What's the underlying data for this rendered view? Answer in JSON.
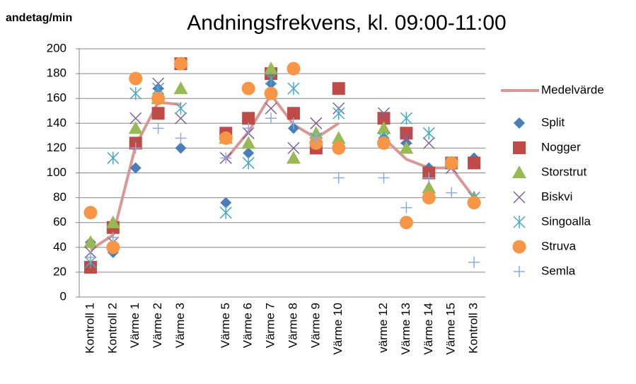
{
  "chart_data": {
    "type": "scatter",
    "title": "Andningsfrekvens, kl. 09:00-11:00",
    "y_label": "andetag/min",
    "categories": [
      "Kontroll 1",
      "Kontroll 2",
      "Värme 1",
      "Värme 2",
      "Värme 3",
      null,
      "Värme 5",
      "Värme 6",
      "Värme 7",
      "Värme 8",
      "Värme 9",
      "Värme 10",
      null,
      "värme 12",
      "Värme 13",
      "Värme 14",
      "Värme 15",
      "Kontroll 3"
    ],
    "ylim": [
      0,
      200
    ],
    "yticks": [
      0,
      20,
      40,
      60,
      80,
      100,
      120,
      140,
      160,
      180,
      200
    ],
    "grid": true,
    "legend": "right",
    "series": [
      {
        "name": "Medelvärde",
        "color": "#d99795",
        "marker": "line",
        "values": [
          38,
          50,
          122,
          157,
          155,
          null,
          111,
          133,
          163,
          139,
          128,
          140,
          null,
          128,
          111,
          104,
          104,
          80
        ]
      },
      {
        "name": "Split",
        "color": "#4a7ebb",
        "marker": "diamond",
        "values": [
          44,
          36,
          104,
          168,
          120,
          null,
          76,
          116,
          172,
          136,
          120,
          120,
          null,
          128,
          124,
          104,
          108,
          112
        ]
      },
      {
        "name": "Nogger",
        "color": "#be4b48",
        "marker": "square",
        "values": [
          24,
          56,
          124,
          148,
          188,
          null,
          132,
          144,
          180,
          148,
          120,
          168,
          null,
          144,
          132,
          100,
          108,
          108
        ]
      },
      {
        "name": "Storstrut",
        "color": "#98b954",
        "marker": "triangle",
        "values": [
          44,
          60,
          136,
          160,
          168,
          null,
          128,
          124,
          184,
          112,
          132,
          128,
          null,
          136,
          120,
          88,
          108,
          80
        ]
      },
      {
        "name": "Biskvi",
        "color": "#7d60a0",
        "marker": "x",
        "values": [
          36,
          44,
          144,
          172,
          144,
          null,
          112,
          132,
          152,
          120,
          140,
          152,
          null,
          148,
          128,
          124,
          104,
          80
        ]
      },
      {
        "name": "Singoalla",
        "color": "#46aac5",
        "marker": "star",
        "values": [
          28,
          112,
          164,
          168,
          152,
          null,
          68,
          108,
          176,
          168,
          128,
          148,
          null,
          128,
          144,
          132,
          108,
          80
        ]
      },
      {
        "name": "Struva",
        "color": "#f79646",
        "marker": "circle",
        "values": [
          68,
          40,
          176,
          160,
          188,
          null,
          128,
          168,
          164,
          184,
          124,
          120,
          null,
          124,
          60,
          80,
          108,
          76
        ]
      },
      {
        "name": "Semla",
        "color": "#8faadc",
        "marker": "plus",
        "values": [
          32,
          48,
          120,
          136,
          128,
          null,
          112,
          136,
          144,
          140,
          128,
          96,
          null,
          96,
          72,
          96,
          84,
          28
        ]
      }
    ]
  }
}
